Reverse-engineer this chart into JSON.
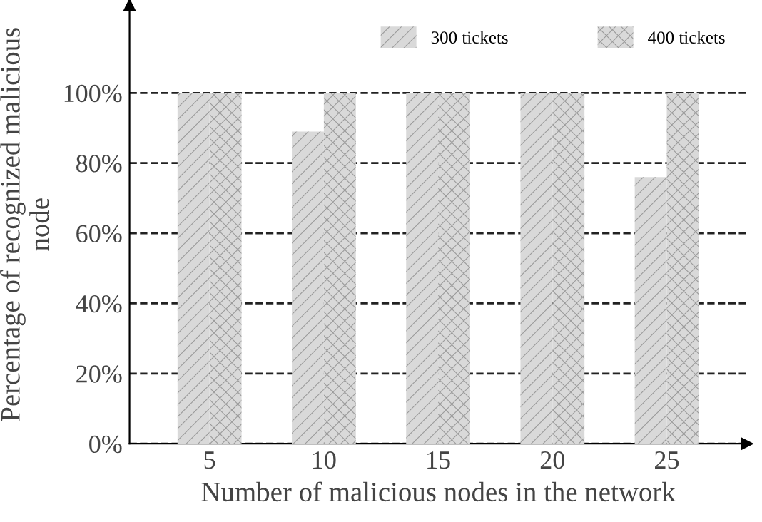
{
  "chart_data": {
    "type": "bar",
    "xlabel": "Number of malicious nodes in the network",
    "ylabel": "Percentage of recognized malicious\nnode",
    "categories": [
      "5",
      "10",
      "15",
      "20",
      "25"
    ],
    "series": [
      {
        "name": "300 tickets",
        "color": "#d9d9d9",
        "values": [
          100,
          89,
          100,
          100,
          76
        ]
      },
      {
        "name": "400 tickets",
        "color": "#d9d9d9",
        "values": [
          100,
          100,
          100,
          100,
          100
        ]
      }
    ],
    "ylim": [
      0,
      125
    ],
    "yticks": [
      {
        "value": 0,
        "label": "0%"
      },
      {
        "value": 20,
        "label": "20%"
      },
      {
        "value": 40,
        "label": "40%"
      },
      {
        "value": 60,
        "label": "60%"
      },
      {
        "value": 80,
        "label": "80%"
      },
      {
        "value": 100,
        "label": "100%"
      }
    ],
    "grid": "y",
    "legend": "top right"
  }
}
